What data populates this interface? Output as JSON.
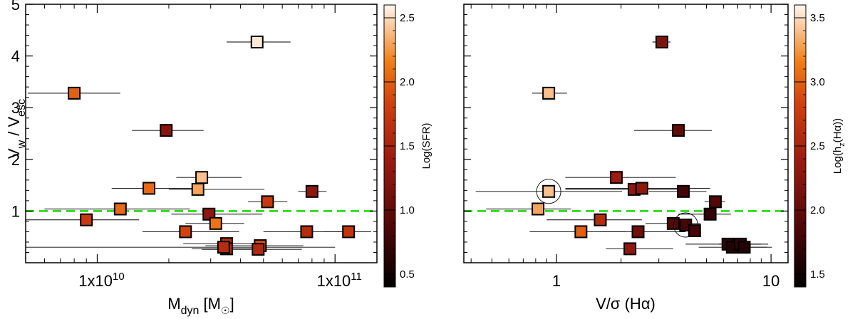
{
  "chart_data": [
    {
      "type": "scatter",
      "title": "",
      "xlabel": "M_dyn [M_sun]",
      "xlabel_main": "M",
      "xlabel_sub": "dyn",
      "xlabel_unit_open": " [M",
      "xlabel_unit_close": "]",
      "ylabel_main1": "V",
      "ylabel_sub1": "w",
      "ylabel_sep": " / V",
      "ylabel_sub2": "esc",
      "xscale": "log",
      "xlim": [
        5000000000,
        150000000000
      ],
      "ylim": [
        0,
        5
      ],
      "x_ticks": [
        {
          "value": 10000000000,
          "label": "1x10"
        },
        {
          "value": 100000000000,
          "label": "1x10"
        }
      ],
      "x_tick_exponents": [
        "10",
        "11"
      ],
      "y_ticks": [
        {
          "value": 1,
          "label": "1"
        },
        {
          "value": 2,
          "label": "2"
        },
        {
          "value": 3,
          "label": "3"
        },
        {
          "value": 4,
          "label": "4"
        },
        {
          "value": 5,
          "label": "5"
        }
      ],
      "reference_line": {
        "y": 1.0,
        "color": "#33dd22",
        "style": "dashed"
      },
      "colorbar": {
        "label": "Log(SFR)",
        "range": [
          0.4,
          2.6
        ],
        "ticks": [
          {
            "value": 0.5,
            "label": "0.5"
          },
          {
            "value": 1.0,
            "label": "1.0"
          },
          {
            "value": 1.5,
            "label": "1.5"
          },
          {
            "value": 2.0,
            "label": "2.0"
          },
          {
            "value": 2.5,
            "label": "2.5"
          }
        ]
      },
      "points": [
        {
          "x": 47000000000,
          "y": 4.27,
          "xerr_lo": 12000000000,
          "xerr_hi": 18000000000,
          "c": 2.55
        },
        {
          "x": 8000000000,
          "y": 3.28,
          "xerr_lo": 2900000000,
          "xerr_hi": 4500000000,
          "c": 2.0
        },
        {
          "x": 19500000000,
          "y": 2.56,
          "xerr_lo": 5500000000,
          "xerr_hi": 8500000000,
          "c": 1.25
        },
        {
          "x": 27500000000,
          "y": 1.65,
          "xerr_lo": 6000000000,
          "xerr_hi": 13000000000,
          "c": 2.4
        },
        {
          "x": 16500000000,
          "y": 1.44,
          "xerr_lo": 5000000000,
          "xerr_hi": 10000000000,
          "c": 2.05
        },
        {
          "x": 26500000000,
          "y": 1.42,
          "xerr_lo": 6500000000,
          "xerr_hi": 24000000000,
          "c": 2.3
        },
        {
          "x": 80000000000,
          "y": 1.38,
          "xerr_lo": 10000000000,
          "xerr_hi": 12000000000,
          "c": 1.3
        },
        {
          "x": 52000000000,
          "y": 1.18,
          "xerr_lo": 9000000000,
          "xerr_hi": 11000000000,
          "c": 1.75
        },
        {
          "x": 12500000000,
          "y": 1.04,
          "xerr_lo": 6500000000,
          "xerr_hi": 12000000000,
          "c": 2.05
        },
        {
          "x": 29500000000,
          "y": 0.94,
          "xerr_lo": 9000000000,
          "xerr_hi": 20000000000,
          "c": 1.3
        },
        {
          "x": 9000000000,
          "y": 0.83,
          "xerr_lo": 4000000000,
          "xerr_hi": 6000000000,
          "c": 1.75
        },
        {
          "x": 31500000000,
          "y": 0.76,
          "xerr_lo": 8000000000,
          "xerr_hi": 10000000000,
          "c": 2.1
        },
        {
          "x": 23500000000,
          "y": 0.6,
          "xerr_lo": 8000000000,
          "xerr_hi": 16000000000,
          "c": 1.85
        },
        {
          "x": 76000000000,
          "y": 0.6,
          "xerr_lo": 26000000000,
          "xerr_hi": 30000000000,
          "c": 1.6
        },
        {
          "x": 114000000000,
          "y": 0.6,
          "xerr_lo": 24000000000,
          "xerr_hi": 28000000000,
          "c": 1.7
        },
        {
          "x": 35000000000,
          "y": 0.37,
          "xerr_lo": 12000000000,
          "xerr_hi": 15000000000,
          "c": 1.65
        },
        {
          "x": 35000000000,
          "y": 0.27,
          "xerr_lo": 10000000000,
          "xerr_hi": 15000000000,
          "c": 1.6
        },
        {
          "x": 48500000000,
          "y": 0.33,
          "xerr_lo": 20000000000,
          "xerr_hi": 25000000000,
          "c": 1.9
        },
        {
          "x": 47500000000,
          "y": 0.26,
          "xerr_lo": 20000000000,
          "xerr_hi": 25000000000,
          "c": 1.55
        },
        {
          "x": 34000000000,
          "y": 0.3,
          "xerr_lo": 29000000000,
          "xerr_hi": 66000000000,
          "c": 1.6
        }
      ]
    },
    {
      "type": "scatter",
      "title": "",
      "xlabel": "V/sigma (H-alpha)",
      "xlabel_text": "V/σ (Hα)",
      "xscale": "log",
      "xlim": [
        0.37,
        12
      ],
      "ylim": [
        0,
        5
      ],
      "x_ticks": [
        {
          "value": 1,
          "label": "1"
        },
        {
          "value": 10,
          "label": "10"
        }
      ],
      "y_ticks": [
        {
          "value": 1,
          "label": ""
        },
        {
          "value": 2,
          "label": ""
        },
        {
          "value": 3,
          "label": ""
        },
        {
          "value": 4,
          "label": ""
        },
        {
          "value": 5,
          "label": ""
        }
      ],
      "reference_line": {
        "y": 1.0,
        "color": "#33dd22",
        "style": "dashed"
      },
      "colorbar": {
        "label": "Log(h_z(H-alpha))",
        "label_main": "Log(h",
        "label_sub": "z",
        "label_tail": "(Hα))",
        "range": [
          1.4,
          3.6
        ],
        "ticks": [
          {
            "value": 1.5,
            "label": "1.5"
          },
          {
            "value": 2.0,
            "label": "2.0"
          },
          {
            "value": 2.5,
            "label": "2.5"
          },
          {
            "value": 3.0,
            "label": "3.0"
          },
          {
            "value": 3.5,
            "label": "3.5"
          }
        ]
      },
      "points": [
        {
          "x": 3.1,
          "y": 4.27,
          "xerr_lo": 0.3,
          "xerr_hi": 0.3,
          "c": 2.2,
          "circled": false
        },
        {
          "x": 0.92,
          "y": 3.28,
          "xerr_lo": 0.15,
          "xerr_hi": 0.2,
          "c": 3.4,
          "circled": false
        },
        {
          "x": 3.7,
          "y": 2.56,
          "xerr_lo": 1.4,
          "xerr_hi": 1.6,
          "c": 2.0,
          "circled": false
        },
        {
          "x": 1.9,
          "y": 1.65,
          "xerr_lo": 0.8,
          "xerr_hi": 1.7,
          "c": 2.4,
          "circled": false
        },
        {
          "x": 0.92,
          "y": 1.38,
          "xerr_lo": 0.5,
          "xerr_hi": 1.1,
          "c": 3.4,
          "circled": true
        },
        {
          "x": 2.3,
          "y": 1.42,
          "xerr_lo": 1.2,
          "xerr_hi": 1.7,
          "c": 2.3,
          "circled": false
        },
        {
          "x": 2.5,
          "y": 1.44,
          "xerr_lo": 1.4,
          "xerr_hi": 2.7,
          "c": 2.3,
          "circled": false
        },
        {
          "x": 3.9,
          "y": 1.38,
          "xerr_lo": 1.2,
          "xerr_hi": 1.1,
          "c": 1.8,
          "circled": false
        },
        {
          "x": 5.5,
          "y": 1.18,
          "xerr_lo": 0.6,
          "xerr_hi": 0.6,
          "c": 1.9,
          "circled": false
        },
        {
          "x": 0.82,
          "y": 1.04,
          "xerr_lo": 0.35,
          "xerr_hi": 0.35,
          "c": 3.3,
          "circled": false
        },
        {
          "x": 5.2,
          "y": 0.94,
          "xerr_lo": 1.5,
          "xerr_hi": 1.3,
          "c": 1.7,
          "circled": false
        },
        {
          "x": 1.6,
          "y": 0.83,
          "xerr_lo": 0.7,
          "xerr_hi": 0.9,
          "c": 2.6,
          "circled": false
        },
        {
          "x": 3.5,
          "y": 0.76,
          "xerr_lo": 0.9,
          "xerr_hi": 1.2,
          "c": 1.9,
          "circled": false
        },
        {
          "x": 4.0,
          "y": 0.73,
          "xerr_lo": 0.3,
          "xerr_hi": 0.3,
          "c": 1.8,
          "circled": true
        },
        {
          "x": 4.4,
          "y": 0.62,
          "xerr_lo": 0.3,
          "xerr_hi": 0.3,
          "c": 1.8,
          "circled": false
        },
        {
          "x": 1.3,
          "y": 0.6,
          "xerr_lo": 0.55,
          "xerr_hi": 0.8,
          "c": 3.0,
          "circled": false
        },
        {
          "x": 2.4,
          "y": 0.6,
          "xerr_lo": 0.8,
          "xerr_hi": 1.6,
          "c": 2.1,
          "circled": false
        },
        {
          "x": 2.2,
          "y": 0.27,
          "xerr_lo": 0.5,
          "xerr_hi": 1.3,
          "c": 2.3,
          "circled": false
        },
        {
          "x": 6.3,
          "y": 0.36,
          "xerr_lo": 2.3,
          "xerr_hi": 2.7,
          "c": 1.7,
          "circled": false
        },
        {
          "x": 6.6,
          "y": 0.3,
          "xerr_lo": 2.0,
          "xerr_hi": 3.0,
          "c": 1.6,
          "circled": false
        },
        {
          "x": 7.2,
          "y": 0.36,
          "xerr_lo": 1.5,
          "xerr_hi": 2.5,
          "c": 1.7,
          "circled": false
        },
        {
          "x": 7.5,
          "y": 0.3,
          "xerr_lo": 1.3,
          "xerr_hi": 2.6,
          "c": 1.6,
          "circled": false
        }
      ]
    }
  ]
}
